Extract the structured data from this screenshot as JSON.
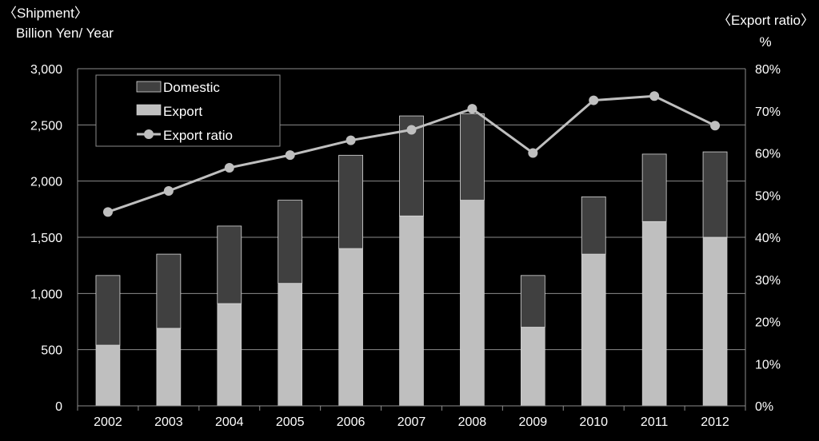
{
  "chart_data": {
    "type": "bar",
    "left_title": "〈Shipment〉",
    "ylabel": "Billion  Yen/ Year",
    "right_title": "〈Export ratio〉",
    "y2label": "%",
    "categories": [
      "2002",
      "2003",
      "2004",
      "2005",
      "2006",
      "2007",
      "2008",
      "2009",
      "2010",
      "2011",
      "2012"
    ],
    "series": [
      {
        "name": "Domestic",
        "kind": "bar-stack",
        "color": "#404040",
        "values": [
          620,
          660,
          690,
          740,
          830,
          890,
          770,
          460,
          510,
          600,
          760
        ]
      },
      {
        "name": "Export",
        "kind": "bar-stack",
        "color": "#bfbfbf",
        "values": [
          540,
          690,
          910,
          1090,
          1400,
          1690,
          1830,
          700,
          1350,
          1640,
          1500
        ]
      },
      {
        "name": "Export ratio",
        "kind": "line",
        "axis": "right",
        "color": "#bfbfbf",
        "values": [
          46,
          51,
          56.5,
          59.5,
          63,
          65.5,
          70.5,
          60,
          72.5,
          73.5,
          66.5
        ]
      }
    ],
    "ylim": [
      0,
      3000
    ],
    "yticks": [
      "0",
      "500",
      "1,000",
      "1,500",
      "2,000",
      "2,500",
      "3,000"
    ],
    "y2lim": [
      0,
      80
    ],
    "y2ticks": [
      "0%",
      "10%",
      "20%",
      "30%",
      "40%",
      "50%",
      "60%",
      "70%",
      "80%"
    ],
    "grid": true,
    "legend_placement": "top-left",
    "background": "#000000"
  }
}
